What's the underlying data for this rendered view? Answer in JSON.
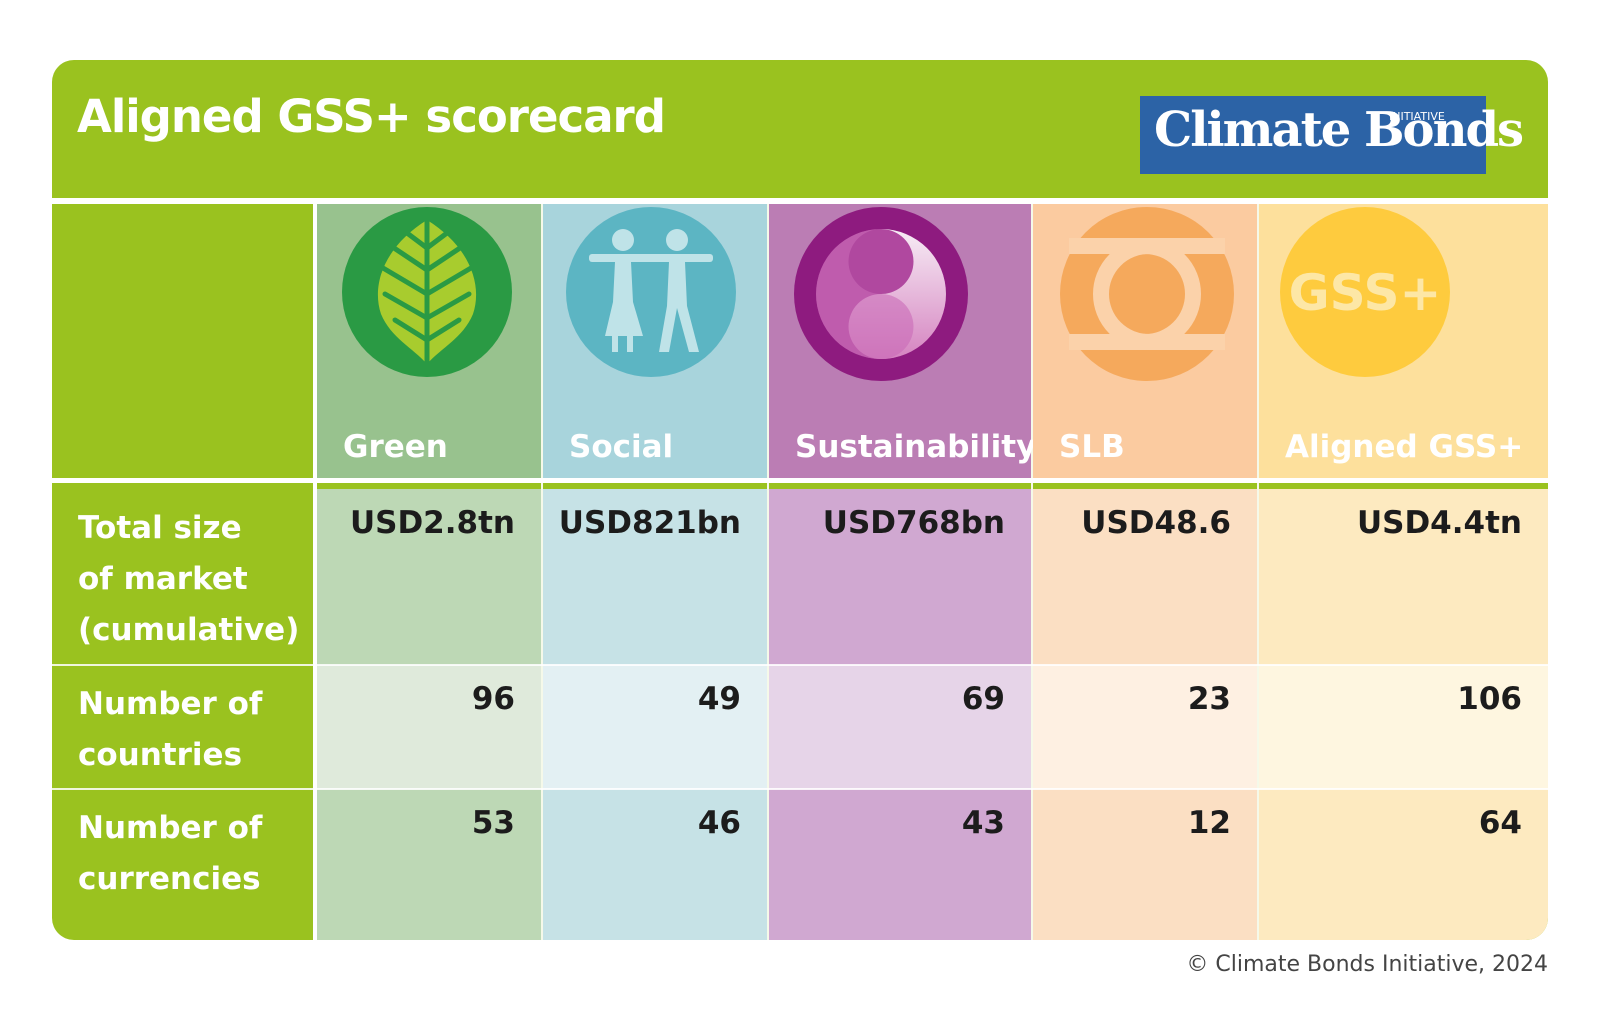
{
  "title": "Aligned GSS+ scorecard",
  "logo": {
    "name": "Climate Bonds",
    "tagline": "INITIATIVE",
    "bg_color": "#2c63a6"
  },
  "brand_color": "#9ac21f",
  "row_labels": {
    "total": "Total size of market (cumulative)",
    "total_lines": [
      "Total size",
      "of market",
      "(cumulative)"
    ],
    "countries_lines": [
      "Number of",
      "countries"
    ],
    "currencies_lines": [
      "Number of",
      "currencies"
    ]
  },
  "columns": [
    {
      "label": "Green",
      "icon": "leaf-icon",
      "total": "USD2.8tn",
      "countries": "96",
      "currencies": "53",
      "colors": {
        "header": "#98c28e",
        "total": "#bdd8b5",
        "countries": "#dfeadb",
        "currencies": "#bdd8b5"
      }
    },
    {
      "label": "Social",
      "icon": "people-icon",
      "total": "USD821bn",
      "countries": "49",
      "currencies": "46",
      "colors": {
        "header": "#a8d4dc",
        "total": "#c6e2e6",
        "countries": "#e3f0f3",
        "currencies": "#c6e2e6"
      }
    },
    {
      "label": "Sustainability",
      "icon": "yin-yang-icon",
      "total": "USD768bn",
      "countries": "69",
      "currencies": "43",
      "colors": {
        "header": "#bb7db4",
        "total": "#d0a8d1",
        "countries": "#e6d4e8",
        "currencies": "#d0a8d1"
      }
    },
    {
      "label": "SLB",
      "icon": "linked-rings-icon",
      "total": "USD48.6",
      "countries": "23",
      "currencies": "12",
      "colors": {
        "header": "#fbcba0",
        "total": "#fbdfc3",
        "countries": "#fef0e2",
        "currencies": "#fbdfc3"
      }
    },
    {
      "label": "Aligned GSS+",
      "icon": "gss-plus-icon",
      "icon_text": "GSS+",
      "total": "USD4.4tn",
      "countries": "106",
      "currencies": "64",
      "colors": {
        "header": "#fde09c",
        "total": "#fdeac0",
        "countries": "#fef6e0",
        "currencies": "#fdeac0"
      }
    }
  ],
  "copyright": "© Climate Bonds Initiative, 2024"
}
